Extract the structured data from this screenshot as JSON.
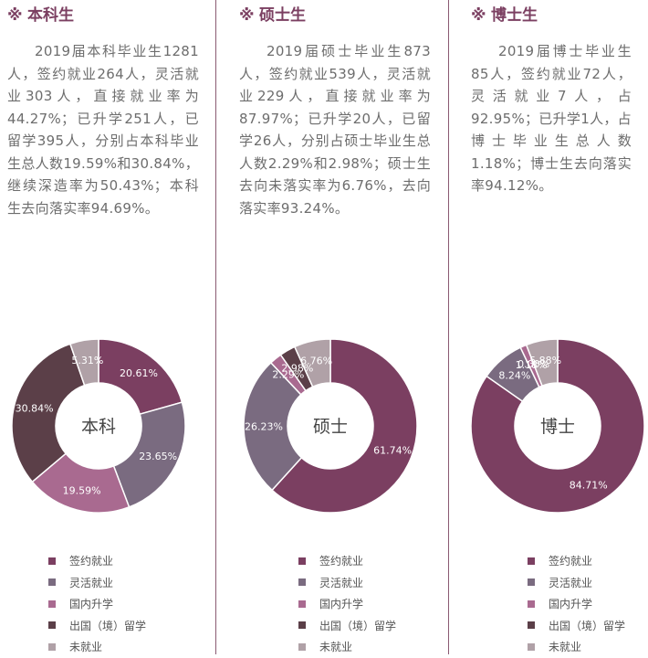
{
  "colors": {
    "accent": "#7b3f61",
    "signed": "#7b3f61",
    "flexible": "#7a6b80",
    "domestic": "#a96a90",
    "abroad": "#5b3f48",
    "unemployed": "#b0a1a7"
  },
  "legend": [
    "签约就业",
    "灵活就业",
    "国内升学",
    "出国（境）留学",
    "未就业"
  ],
  "columns": [
    {
      "mark": "※",
      "title": "本科生",
      "paragraph": "2019届本科毕业生1281人，签约就业264人，灵活就业303人，直接就业率为44.27%；已升学251人，已留学395人，分别占本科毕业生总人数19.59%和30.84%，继续深造率为50.43%；本科生去向落实率94.69%。"
    },
    {
      "mark": "※",
      "title": "硕士生",
      "paragraph": "2019届硕士毕业生873人，签约就业539人，灵活就业229人，直接就业率为87.97%；已升学20人，已留学26人，分别占硕士毕业生总人数2.29%和2.98%；硕士生去向未落实率为6.76%，去向落实率93.24%。"
    },
    {
      "mark": "※",
      "title": "博士生",
      "paragraph": "2019届博士毕业生85人，签约就业72人，灵活就业7人，占92.95%；已升学1人，占博士毕业生总人数1.18%；博士生去向落实率94.12%。"
    }
  ],
  "chart_data": [
    {
      "type": "pie",
      "center_label": "本科",
      "categories": [
        "签约就业",
        "灵活就业",
        "国内升学",
        "出国（境）留学",
        "未就业"
      ],
      "values": [
        20.61,
        23.65,
        19.59,
        30.84,
        5.31
      ],
      "labels": [
        "20.61%",
        "23.65%",
        "19.59%",
        "30.84%",
        "5.31%"
      ]
    },
    {
      "type": "pie",
      "center_label": "硕士",
      "categories": [
        "签约就业",
        "灵活就业",
        "国内升学",
        "出国（境）留学",
        "未就业"
      ],
      "values": [
        61.74,
        26.23,
        2.29,
        2.98,
        6.76
      ],
      "labels": [
        "61.74%",
        "26.23%",
        "2.29%",
        "2.98%",
        "6.76%"
      ]
    },
    {
      "type": "pie",
      "center_label": "博士",
      "categories": [
        "签约就业",
        "灵活就业",
        "国内升学",
        "出国（境）留学",
        "未就业"
      ],
      "values": [
        84.71,
        8.24,
        1.18,
        0.0,
        5.88
      ],
      "labels": [
        "84.71%",
        "8.24%",
        "1.18%",
        "0.00%",
        "5.88%"
      ]
    }
  ]
}
